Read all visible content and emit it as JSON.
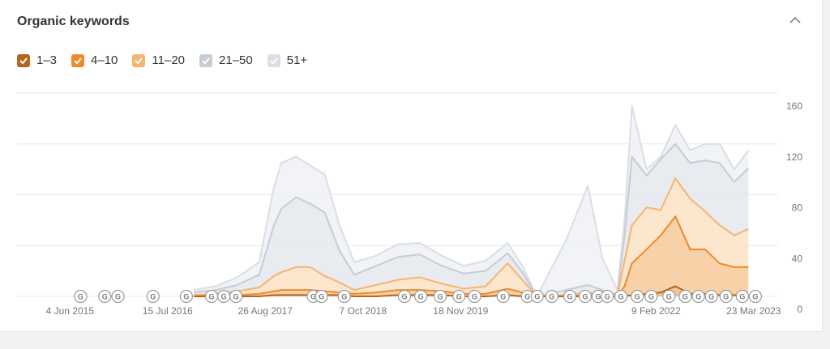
{
  "title": "Organic keywords",
  "chart_data": {
    "type": "area",
    "stacked": true,
    "x": [
      "2016-11-01",
      "2017-02-01",
      "2017-05-01",
      "2017-08-01",
      "2017-10-01",
      "2017-11-01",
      "2018-01-01",
      "2018-03-01",
      "2018-05-01",
      "2018-07-01",
      "2018-09-01",
      "2018-12-01",
      "2019-03-01",
      "2019-06-01",
      "2019-09-01",
      "2019-12-01",
      "2020-03-01",
      "2020-06-01",
      "2020-08-01",
      "2020-10-01",
      "2021-02-01",
      "2021-05-01",
      "2021-07-01",
      "2021-09-01",
      "2021-10-01",
      "2021-11-01",
      "2022-01-01",
      "2022-03-01",
      "2022-05-01",
      "2022-07-01",
      "2022-09-01",
      "2022-11-01",
      "2023-01-01",
      "2023-03-01"
    ],
    "series": [
      {
        "name": "1–3",
        "color": "#b5651d",
        "fill": "#e9b88c",
        "values": [
          0,
          0,
          0,
          0,
          1,
          1,
          1,
          1,
          1,
          1,
          0,
          0,
          1,
          1,
          1,
          0,
          0,
          1,
          0,
          0,
          0,
          0,
          0,
          0,
          0,
          1,
          2,
          3,
          8,
          2,
          2,
          1,
          1,
          1
        ]
      },
      {
        "name": "4–10",
        "color": "#ee8a2a",
        "fill": "#f7c999",
        "values": [
          0,
          1,
          1,
          2,
          3,
          4,
          4,
          4,
          3,
          2,
          2,
          3,
          4,
          4,
          3,
          2,
          2,
          5,
          3,
          0,
          0,
          1,
          0,
          0,
          8,
          25,
          35,
          45,
          55,
          35,
          35,
          25,
          22,
          22
        ]
      },
      {
        "name": "11–20",
        "color": "#f5b46f",
        "fill": "#fbe2c6",
        "values": [
          1,
          1,
          3,
          5,
          12,
          14,
          18,
          18,
          12,
          8,
          3,
          6,
          8,
          10,
          6,
          4,
          6,
          20,
          10,
          0,
          1,
          2,
          1,
          0,
          20,
          30,
          33,
          20,
          30,
          40,
          30,
          30,
          25,
          30
        ]
      },
      {
        "name": "21–50",
        "color": "#c6ccd5",
        "fill": "#e4e7ec",
        "values": [
          2,
          3,
          5,
          10,
          40,
          50,
          55,
          50,
          50,
          25,
          12,
          15,
          18,
          18,
          14,
          12,
          12,
          8,
          6,
          0,
          4,
          6,
          4,
          1,
          20,
          54,
          25,
          40,
          27,
          28,
          40,
          49,
          42,
          48
        ]
      },
      {
        "name": "51+",
        "color": "#dadee5",
        "fill": "#eff1f4",
        "values": [
          2,
          3,
          6,
          10,
          30,
          36,
          32,
          30,
          30,
          20,
          10,
          8,
          10,
          9,
          8,
          6,
          8,
          8,
          5,
          0,
          40,
          78,
          25,
          4,
          12,
          40,
          5,
          2,
          15,
          10,
          13,
          15,
          10,
          14
        ]
      }
    ],
    "xlim": [
      "2014-10-23",
      "2023-07-03"
    ],
    "xticks": [
      {
        "value": "2015-06-04",
        "label": "4 Jun 2015"
      },
      {
        "value": "2016-07-15",
        "label": "15 Jul 2016"
      },
      {
        "value": "2017-08-26",
        "label": "26 Aug 2017"
      },
      {
        "value": "2018-10-07",
        "label": "7 Oct 2018"
      },
      {
        "value": "2019-11-18",
        "label": "18 Nov 2019"
      },
      {
        "value": "2022-02-09",
        "label": "9 Feb 2022"
      },
      {
        "value": "2023-03-23",
        "label": "23 Mar 2023"
      }
    ],
    "ylim": [
      0,
      160
    ],
    "yticks": [
      0,
      40,
      80,
      120,
      160
    ],
    "y_axis_side": "right",
    "grid": true,
    "update_marker_label": "G",
    "update_markers": [
      "2015-07-18",
      "2015-10-27",
      "2015-12-21",
      "2016-05-15",
      "2016-10-01",
      "2017-01-14",
      "2017-03-06",
      "2017-04-26",
      "2018-03-14",
      "2018-04-17",
      "2018-07-21",
      "2019-03-29",
      "2019-06-05",
      "2019-08-25",
      "2019-11-11",
      "2020-01-15",
      "2020-05-13",
      "2020-08-22",
      "2020-10-02",
      "2020-12-02",
      "2021-02-15",
      "2021-04-20",
      "2021-06-13",
      "2021-07-21",
      "2021-09-16",
      "2021-11-23",
      "2022-01-20",
      "2022-04-04",
      "2022-06-11",
      "2022-08-05",
      "2022-09-28",
      "2022-11-28",
      "2023-02-04",
      "2023-03-30"
    ]
  }
}
